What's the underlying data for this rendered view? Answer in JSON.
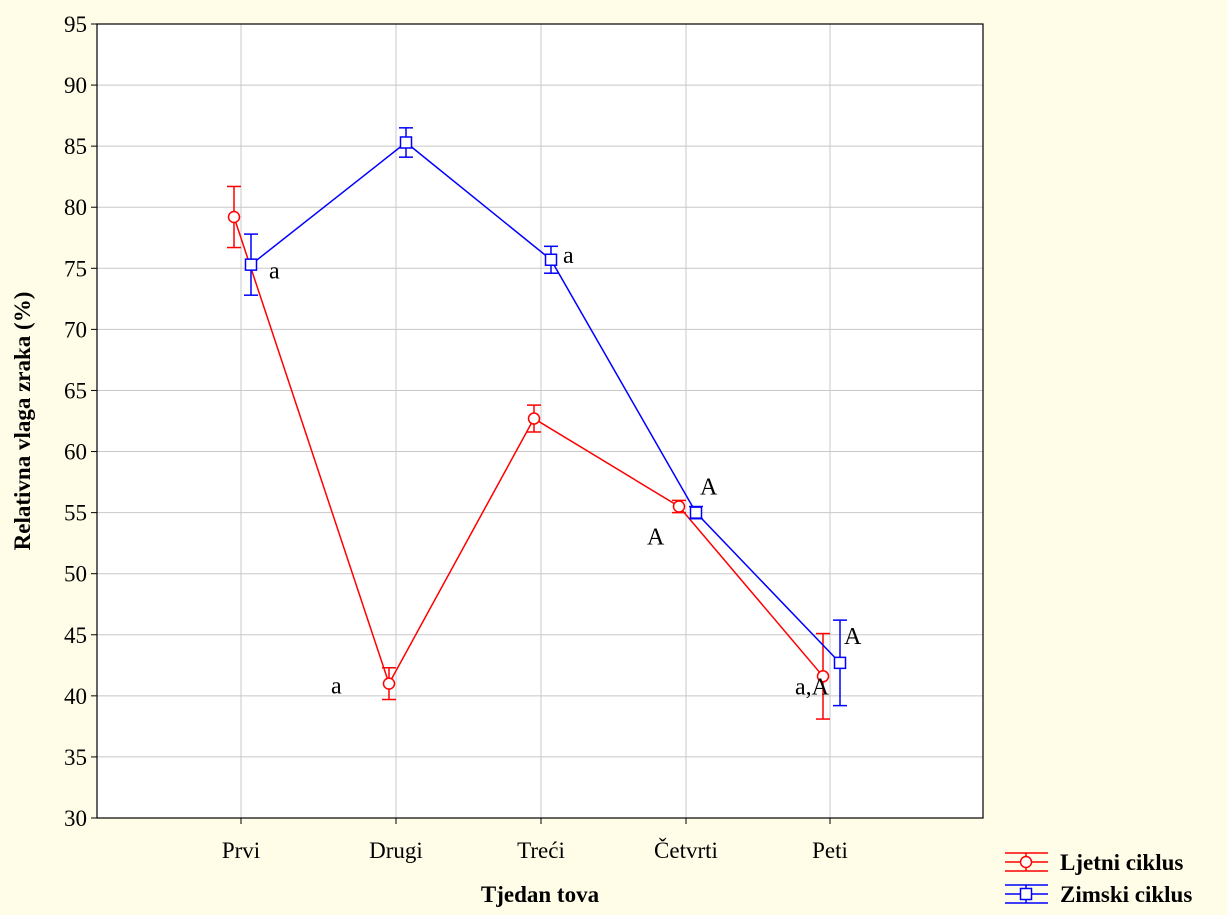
{
  "chart_data": {
    "type": "line",
    "title": "",
    "xlabel": "Tjedan tova",
    "ylabel": "Relativna vlaga zraka (%)",
    "categories": [
      "Prvi",
      "Drugi",
      "Treći",
      "Četvrti",
      "Peti"
    ],
    "ylim": [
      30,
      95
    ],
    "yticks": [
      30,
      35,
      40,
      45,
      50,
      55,
      60,
      65,
      70,
      75,
      80,
      85,
      90,
      95
    ],
    "grid": true,
    "error_bars": true,
    "legend_position": "bottom-right",
    "series": [
      {
        "name": "Ljetni ciklus",
        "color": "#ff0000",
        "marker": "circle",
        "values": [
          79.2,
          41.0,
          62.7,
          55.5,
          41.6
        ],
        "errors": [
          2.5,
          1.3,
          1.1,
          0.5,
          3.5
        ],
        "annotations": [
          "",
          "a",
          "",
          "A",
          "a,A"
        ]
      },
      {
        "name": "Zimski ciklus",
        "color": "#0000ff",
        "marker": "square",
        "values": [
          75.3,
          85.3,
          75.7,
          55.0,
          42.7
        ],
        "errors": [
          2.5,
          1.2,
          1.1,
          0.5,
          3.5
        ],
        "annotations": [
          "a",
          "",
          "a",
          "A",
          "A"
        ]
      }
    ]
  }
}
